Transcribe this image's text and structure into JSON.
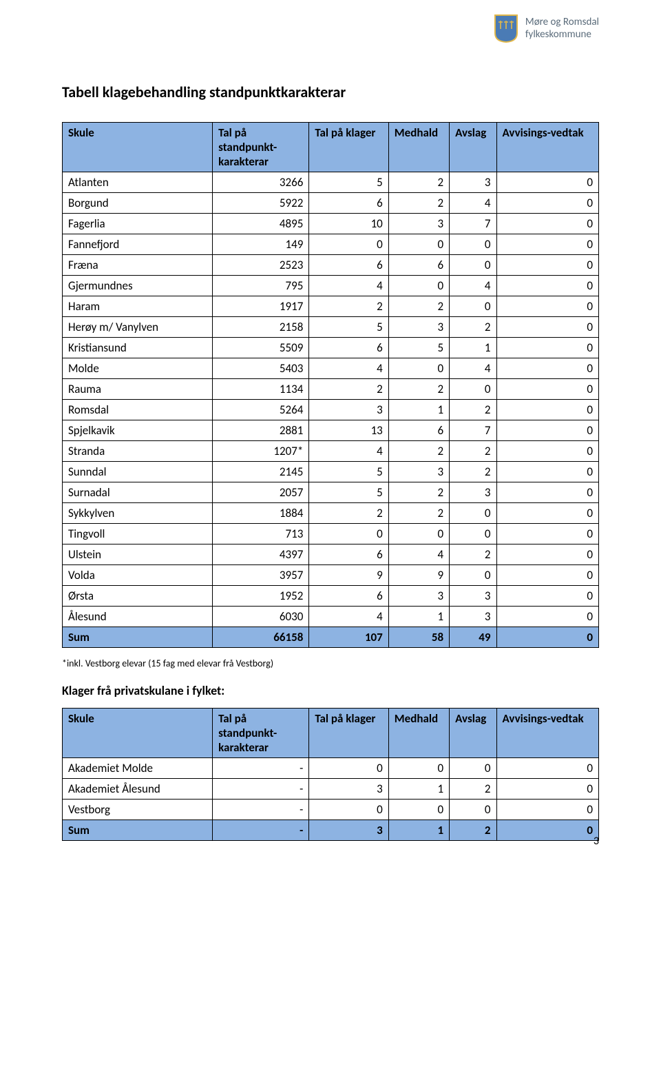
{
  "logo": {
    "line1": "Møre og Romsdal",
    "line2": "fylkeskommune",
    "shield_bg": "#4a7bb5",
    "shield_border": "#e2b84a"
  },
  "title": "Tabell klagebehandling standpunktkarakterar",
  "table1": {
    "columns": [
      "Skule",
      "Tal på standpunkt-karakterar",
      "Tal på klager",
      "Medhald",
      "Avslag",
      "Avvisings-vedtak"
    ],
    "rows": [
      [
        "Atlanten",
        "3266",
        "5",
        "2",
        "3",
        "0"
      ],
      [
        "Borgund",
        "5922",
        "6",
        "2",
        "4",
        "0"
      ],
      [
        "Fagerlia",
        "4895",
        "10",
        "3",
        "7",
        "0"
      ],
      [
        "Fannefjord",
        "149",
        "0",
        "0",
        "0",
        "0"
      ],
      [
        "Fræna",
        "2523",
        "6",
        "6",
        "0",
        "0"
      ],
      [
        "Gjermundnes",
        "795",
        "4",
        "0",
        "4",
        "0"
      ],
      [
        "Haram",
        "1917",
        "2",
        "2",
        "0",
        "0"
      ],
      [
        "Herøy m/ Vanylven",
        "2158",
        "5",
        "3",
        "2",
        "0"
      ],
      [
        "Kristiansund",
        "5509",
        "6",
        "5",
        "1",
        "0"
      ],
      [
        "Molde",
        "5403",
        "4",
        "0",
        "4",
        "0"
      ],
      [
        "Rauma",
        "1134",
        "2",
        "2",
        "0",
        "0"
      ],
      [
        "Romsdal",
        "5264",
        "3",
        "1",
        "2",
        "0"
      ],
      [
        "Spjelkavik",
        "2881",
        "13",
        "6",
        "7",
        "0"
      ],
      [
        "Stranda",
        "1207*",
        "4",
        "2",
        "2",
        "0"
      ],
      [
        "Sunndal",
        "2145",
        "5",
        "3",
        "2",
        "0"
      ],
      [
        "Surnadal",
        "2057",
        "5",
        "2",
        "3",
        "0"
      ],
      [
        "Sykkylven",
        "1884",
        "2",
        "2",
        "0",
        "0"
      ],
      [
        "Tingvoll",
        "713",
        "0",
        "0",
        "0",
        "0"
      ],
      [
        "Ulstein",
        "4397",
        "6",
        "4",
        "2",
        "0"
      ],
      [
        "Volda",
        "3957",
        "9",
        "9",
        "0",
        "0"
      ],
      [
        "Ørsta",
        "1952",
        "6",
        "3",
        "3",
        "0"
      ],
      [
        "Ålesund",
        "6030",
        "4",
        "1",
        "3",
        "0"
      ]
    ],
    "sum_row": [
      "Sum",
      "66158",
      "107",
      "58",
      "49",
      "0"
    ]
  },
  "footnote": "*inkl. Vestborg elevar (15 fag med elevar frå Vestborg)",
  "subheading": "Klager frå privatskulane i fylket:",
  "table2": {
    "columns": [
      "Skule",
      "Tal på standpunkt-karakterar",
      "Tal på klager",
      "Medhald",
      "Avslag",
      "Avvisings-vedtak"
    ],
    "rows": [
      [
        "Akademiet Molde",
        "-",
        "0",
        "0",
        "0",
        "0"
      ],
      [
        "Akademiet Ålesund",
        "-",
        "3",
        "1",
        "2",
        "0"
      ],
      [
        "Vestborg",
        "-",
        "0",
        "0",
        "0",
        "0"
      ]
    ],
    "sum_row": [
      "Sum",
      "-",
      "3",
      "1",
      "2",
      "0"
    ]
  },
  "page_number": "3",
  "colors": {
    "header_bg": "#8db3e2",
    "border": "#000000",
    "text": "#000000",
    "logo_text": "#5a6b7a"
  }
}
